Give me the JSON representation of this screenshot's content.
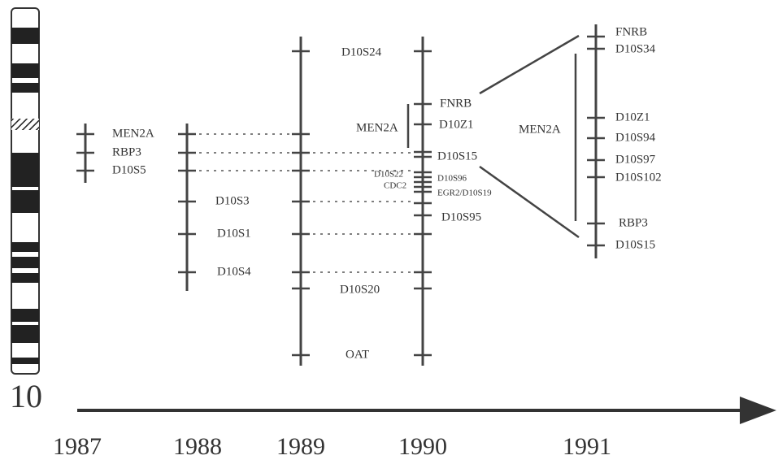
{
  "chromosome": {
    "label": "10"
  },
  "timeline": {
    "years": [
      "1987",
      "1988",
      "1989",
      "1990",
      "1991"
    ]
  },
  "maps": [
    {
      "labels": [
        "MEN2A",
        "RBP3",
        "D10S5"
      ]
    },
    {
      "labels": [
        "D10S3",
        "D10S1",
        "D10S4"
      ]
    },
    {
      "labels": [
        "D10S24",
        "D10S20",
        "OAT"
      ]
    },
    {
      "labels": [
        "FNRB",
        "D10Z1",
        "D10S15",
        "D10S22",
        "D10S96",
        "CDC2",
        "EGR2/D10S19",
        "D10S95"
      ],
      "region": "MEN2A"
    },
    {
      "labels": [
        "FNRB",
        "D10S34",
        "D10Z1",
        "D10S94",
        "D10S97",
        "D10S102",
        "RBP3",
        "D10S15"
      ],
      "region": "MEN2A"
    }
  ]
}
